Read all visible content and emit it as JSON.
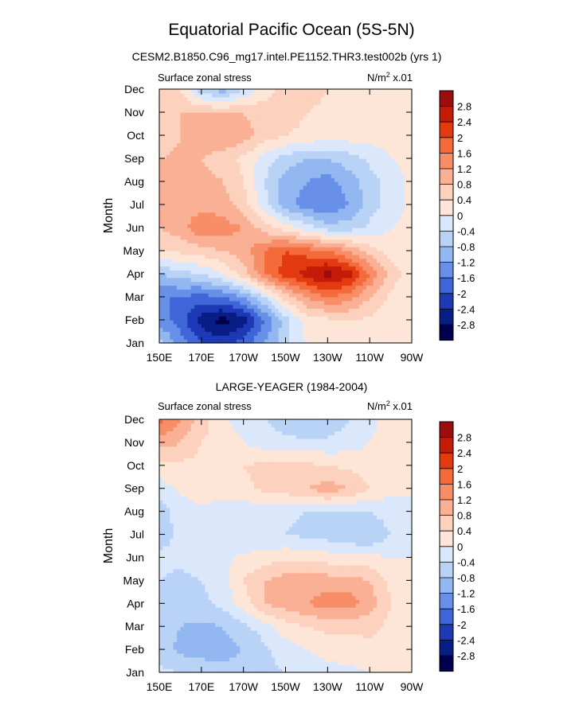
{
  "figure": {
    "title": "Equatorial Pacific Ocean (5S-5N)",
    "subtitle": "CESM2.B1850.C96_mg17.intel.PE1152.THR3.test002b (yrs 1)"
  },
  "colorbar": {
    "levels": [
      "2.8",
      "2.4",
      "2",
      "1.6",
      "1.2",
      "0.8",
      "0.4",
      "0",
      "-0.4",
      "-0.8",
      "-1.2",
      "-1.6",
      "-2",
      "-2.4",
      "-2.8"
    ],
    "colors": [
      "#9e0d0d",
      "#c41a08",
      "#e33a12",
      "#f56a3a",
      "#f88e68",
      "#fab095",
      "#fcd1bd",
      "#fde6d8",
      "#dbe8fb",
      "#b9d3f6",
      "#93b7f0",
      "#6890e8",
      "#3f66d8",
      "#1d39b6",
      "#081d85",
      "#00004e"
    ]
  },
  "chart_data": [
    {
      "type": "heatmap",
      "title": "",
      "left_label": "Surface zonal stress",
      "units_prefix": "N/m",
      "units_sup": "2",
      "units_suffix": " x.01",
      "ylabel": "Month",
      "xlabel": "",
      "x": [
        150,
        160,
        170,
        180,
        190,
        200,
        210,
        220,
        230,
        240,
        250,
        260,
        270
      ],
      "x_ticks": [
        "150E",
        "170E",
        "170W",
        "150W",
        "130W",
        "110W",
        "90W"
      ],
      "y_ticks": [
        "Jan",
        "Feb",
        "Mar",
        "Apr",
        "May",
        "Jun",
        "Jul",
        "Aug",
        "Sep",
        "Oct",
        "Nov",
        "Dec"
      ],
      "value_range": [
        -3.0,
        3.0
      ],
      "values": [
        [
          -0.6,
          -1.4,
          -2.0,
          -2.2,
          -1.8,
          -1.2,
          -0.5,
          0.0,
          0.2,
          0.3,
          0.3,
          0.2,
          0.1
        ],
        [
          -1.4,
          -1.8,
          -2.6,
          -3.0,
          -2.6,
          -1.6,
          -0.6,
          0.2,
          0.3,
          0.4,
          0.3,
          0.2,
          0.1
        ],
        [
          -1.6,
          -1.6,
          -1.8,
          -1.6,
          -1.2,
          -0.4,
          0.6,
          1.2,
          1.6,
          1.4,
          0.8,
          0.3,
          0.1
        ],
        [
          -0.8,
          -0.6,
          -0.4,
          0.0,
          0.6,
          1.6,
          2.2,
          2.6,
          3.0,
          2.6,
          1.6,
          0.6,
          0.2
        ],
        [
          0.4,
          0.5,
          0.6,
          0.8,
          1.0,
          1.6,
          2.0,
          1.8,
          1.6,
          1.2,
          0.6,
          0.2,
          0.1
        ],
        [
          0.8,
          1.0,
          1.6,
          1.4,
          1.2,
          0.6,
          0.2,
          -0.2,
          -0.6,
          -0.6,
          -0.3,
          0.0,
          0.1
        ],
        [
          0.8,
          1.0,
          1.0,
          1.0,
          0.6,
          -0.2,
          -1.0,
          -1.4,
          -1.6,
          -1.2,
          -0.6,
          -0.2,
          0.1
        ],
        [
          0.9,
          1.0,
          1.0,
          0.8,
          0.4,
          -0.4,
          -1.0,
          -1.2,
          -1.4,
          -1.0,
          -0.6,
          -0.2,
          0.1
        ],
        [
          0.8,
          0.9,
          0.8,
          0.6,
          0.3,
          -0.2,
          -0.6,
          -0.8,
          -0.8,
          -0.6,
          -0.3,
          0.0,
          0.1
        ],
        [
          0.4,
          0.8,
          1.0,
          1.2,
          1.0,
          0.6,
          0.4,
          0.3,
          0.2,
          0.2,
          0.2,
          0.1,
          0.1
        ],
        [
          0.6,
          0.8,
          0.8,
          0.8,
          0.8,
          0.6,
          0.6,
          0.4,
          0.3,
          0.3,
          0.2,
          0.2,
          0.1
        ],
        [
          0.4,
          0.4,
          -0.6,
          -1.0,
          -0.4,
          0.2,
          0.6,
          0.6,
          0.4,
          0.3,
          0.2,
          0.2,
          0.1
        ]
      ]
    },
    {
      "type": "heatmap",
      "title": "LARGE-YEAGER (1984-2004)",
      "left_label": "Surface zonal stress",
      "units_prefix": "N/m",
      "units_sup": "2",
      "units_suffix": " x.01",
      "ylabel": "Month",
      "xlabel": "",
      "x": [
        150,
        160,
        170,
        180,
        190,
        200,
        210,
        220,
        230,
        240,
        250,
        260,
        270
      ],
      "x_ticks": [
        "150E",
        "170E",
        "170W",
        "150W",
        "130W",
        "110W",
        "90W"
      ],
      "y_ticks": [
        "Jan",
        "Feb",
        "Mar",
        "Apr",
        "May",
        "Jun",
        "Jul",
        "Aug",
        "Sep",
        "Oct",
        "Nov",
        "Dec"
      ],
      "value_range": [
        -3.0,
        3.0
      ],
      "values": [
        [
          -0.3,
          -0.4,
          -0.5,
          -0.6,
          -0.6,
          -0.5,
          -0.4,
          -0.3,
          -0.2,
          -0.1,
          0.0,
          0.1,
          0.1
        ],
        [
          -0.6,
          -0.9,
          -1.0,
          -1.0,
          -0.8,
          -0.5,
          -0.2,
          0.0,
          0.2,
          0.2,
          0.3,
          0.2,
          0.1
        ],
        [
          -0.6,
          -0.8,
          -0.9,
          -0.8,
          -0.5,
          -0.2,
          0.2,
          0.4,
          0.5,
          0.5,
          0.5,
          0.3,
          0.1
        ],
        [
          -0.5,
          -0.6,
          -0.5,
          -0.3,
          0.2,
          0.8,
          1.0,
          1.2,
          1.4,
          1.4,
          1.0,
          0.4,
          0.1
        ],
        [
          -0.4,
          -0.5,
          -0.4,
          -0.2,
          0.4,
          0.8,
          1.0,
          1.0,
          1.0,
          1.0,
          0.8,
          0.3,
          0.1
        ],
        [
          -0.3,
          -0.3,
          -0.2,
          -0.1,
          0.1,
          0.2,
          0.3,
          0.3,
          0.2,
          0.2,
          0.1,
          0.0,
          0.0
        ],
        [
          -0.6,
          -0.3,
          -0.2,
          -0.3,
          -0.4,
          -0.4,
          -0.4,
          -0.5,
          -0.6,
          -0.8,
          -0.8,
          -0.4,
          -0.1
        ],
        [
          -0.6,
          -0.2,
          -0.1,
          -0.2,
          -0.3,
          -0.2,
          -0.3,
          -0.4,
          -0.4,
          -0.5,
          -0.4,
          -0.2,
          0.0
        ],
        [
          -0.2,
          0.1,
          0.2,
          0.2,
          0.3,
          0.5,
          0.6,
          0.8,
          1.0,
          0.8,
          0.4,
          0.1,
          0.0
        ],
        [
          0.2,
          0.3,
          0.3,
          0.3,
          0.4,
          0.5,
          0.5,
          0.5,
          0.4,
          0.3,
          0.2,
          0.1,
          0.1
        ],
        [
          1.0,
          0.8,
          0.4,
          0.2,
          0.0,
          -0.2,
          -0.3,
          -0.3,
          -0.3,
          -0.2,
          0.0,
          0.1,
          0.2
        ],
        [
          1.8,
          1.2,
          0.6,
          0.1,
          -0.2,
          -0.4,
          -0.6,
          -0.8,
          -0.7,
          -0.4,
          -0.1,
          0.2,
          0.3
        ]
      ]
    }
  ]
}
